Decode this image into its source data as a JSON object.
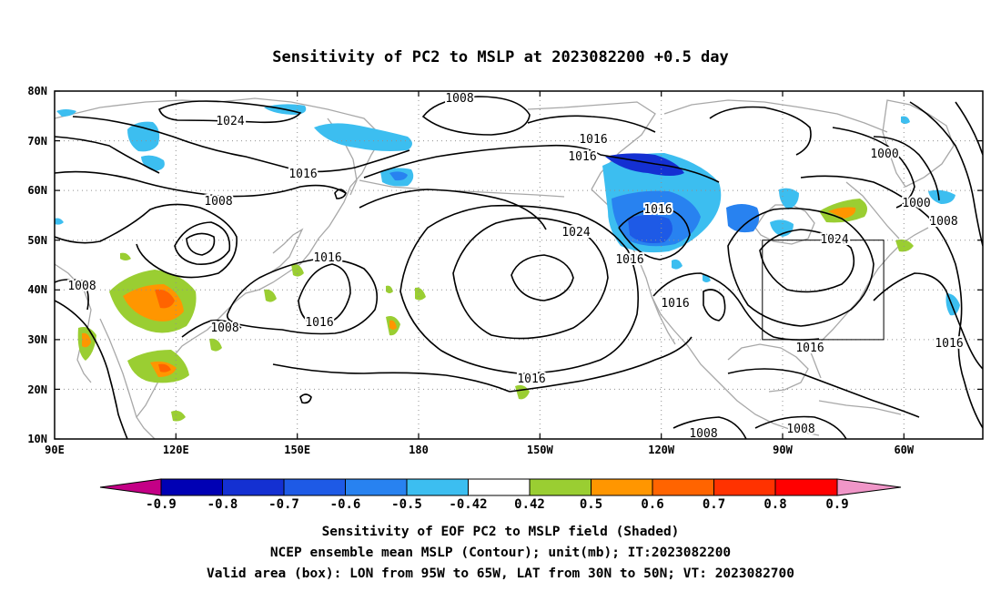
{
  "title": "Sensitivity of PC2 to MSLP at 2023082200 +0.5 day",
  "lat_ticks": [
    "80N",
    "70N",
    "60N",
    "50N",
    "40N",
    "30N",
    "20N",
    "10N"
  ],
  "lon_ticks": [
    "90E",
    "120E",
    "150E",
    "180",
    "150W",
    "120W",
    "90W",
    "60W"
  ],
  "contour_labels": [
    {
      "text": "1024",
      "id": "c1024-asia"
    },
    {
      "text": "1008",
      "id": "c1008-arctic"
    },
    {
      "text": "1016",
      "id": "c1016-siberia"
    },
    {
      "text": "1008",
      "id": "c1008-mongolia"
    },
    {
      "text": "1016",
      "id": "c1016-gulf-alaska-a"
    },
    {
      "text": "1016",
      "id": "c1016-gulf-alaska-b"
    },
    {
      "text": "1016",
      "id": "c1016-bc"
    },
    {
      "text": "1024",
      "id": "c1024-pacific"
    },
    {
      "text": "1016",
      "id": "c1016-west-pacific-a"
    },
    {
      "text": "1016",
      "id": "c1016-west-pacific-b"
    },
    {
      "text": "1008",
      "id": "c1008-china"
    },
    {
      "text": "1008",
      "id": "c1008-india"
    },
    {
      "text": "1016",
      "id": "c1016-hawaii"
    },
    {
      "text": "1016",
      "id": "c1016-california"
    },
    {
      "text": "1016",
      "id": "c1016-west-coast"
    },
    {
      "text": "1000",
      "id": "c1000-greenland-a"
    },
    {
      "text": "1000",
      "id": "c1000-greenland-b"
    },
    {
      "text": "1008",
      "id": "c1008-atlantic"
    },
    {
      "text": "1024",
      "id": "c1024-hudson"
    },
    {
      "text": "1016",
      "id": "c1016-box"
    },
    {
      "text": "1016",
      "id": "c1016-atlantic"
    },
    {
      "text": "1008",
      "id": "c1008-mexico"
    },
    {
      "text": "1008",
      "id": "c1008-caribbean"
    }
  ],
  "colorbar": {
    "labels": [
      "-0.9",
      "-0.8",
      "-0.7",
      "-0.6",
      "-0.5",
      "-0.42",
      "0.42",
      "0.5",
      "0.6",
      "0.7",
      "0.8",
      "0.9"
    ],
    "colors": [
      "#c40086",
      "#0000b4",
      "#1430d2",
      "#1e5ae6",
      "#2882f0",
      "#3cbef0",
      "#ffffff",
      "#9ace32",
      "#ff9600",
      "#ff6400",
      "#ff3200",
      "#ff0000",
      "#f096c8"
    ]
  },
  "captions": {
    "line1": "Sensitivity of EOF PC2 to MSLP field (Shaded)",
    "line2": "NCEP ensemble mean MSLP (Contour); unit(mb); IT:2023082200",
    "line3": "Valid area (box): LON from 95W to 65W, LAT from 30N to 50N; VT: 2023082700"
  }
}
